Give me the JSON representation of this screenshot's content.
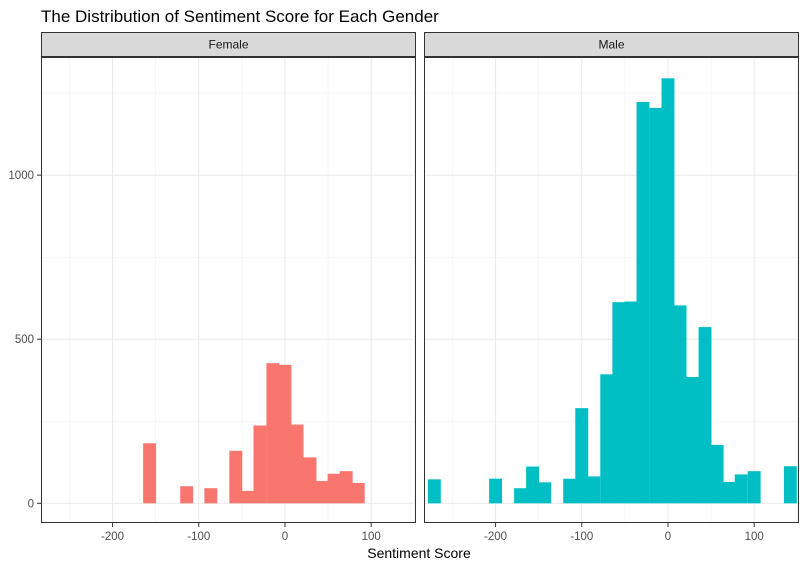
{
  "chart_data": {
    "type": "bar",
    "title": "The Distribution of Sentiment Score for Each Gender",
    "xlabel": "Sentiment Score",
    "ylabel": "",
    "xlim": [
      -283,
      152
    ],
    "ylim": [
      -60,
      1360
    ],
    "x_ticks": [
      -200,
      -100,
      0,
      100
    ],
    "x_tick_labels": [
      "-200",
      "-100",
      "0",
      "100"
    ],
    "y_ticks": [
      0,
      500,
      1000
    ],
    "y_tick_labels": [
      "0",
      "500",
      "1000"
    ],
    "bin_width": 15,
    "grid": true,
    "legend": "none",
    "facets": [
      {
        "label": "Female",
        "color": "#F8766D",
        "bins": [
          {
            "x": -157,
            "count": 183
          },
          {
            "x": -114,
            "count": 52
          },
          {
            "x": -86,
            "count": 46
          },
          {
            "x": -57,
            "count": 160
          },
          {
            "x": -43,
            "count": 38
          },
          {
            "x": -29,
            "count": 237
          },
          {
            "x": -14,
            "count": 427
          },
          {
            "x": 0,
            "count": 422
          },
          {
            "x": 14,
            "count": 240
          },
          {
            "x": 29,
            "count": 140
          },
          {
            "x": 43,
            "count": 68
          },
          {
            "x": 57,
            "count": 90
          },
          {
            "x": 71,
            "count": 98
          },
          {
            "x": 85,
            "count": 62
          }
        ]
      },
      {
        "label": "Male",
        "color": "#00BFC4",
        "bins": [
          {
            "x": -271,
            "count": 73
          },
          {
            "x": -200,
            "count": 75
          },
          {
            "x": -171,
            "count": 46
          },
          {
            "x": -157,
            "count": 112
          },
          {
            "x": -143,
            "count": 64
          },
          {
            "x": -114,
            "count": 75
          },
          {
            "x": -100,
            "count": 290
          },
          {
            "x": -86,
            "count": 82
          },
          {
            "x": -71,
            "count": 393
          },
          {
            "x": -57,
            "count": 613
          },
          {
            "x": -43,
            "count": 615
          },
          {
            "x": -29,
            "count": 1223
          },
          {
            "x": -14,
            "count": 1205
          },
          {
            "x": 0,
            "count": 1295
          },
          {
            "x": 14,
            "count": 603
          },
          {
            "x": 29,
            "count": 385
          },
          {
            "x": 43,
            "count": 537
          },
          {
            "x": 57,
            "count": 178
          },
          {
            "x": 71,
            "count": 65
          },
          {
            "x": 85,
            "count": 88
          },
          {
            "x": 100,
            "count": 98
          },
          {
            "x": 142,
            "count": 113
          }
        ]
      }
    ]
  }
}
